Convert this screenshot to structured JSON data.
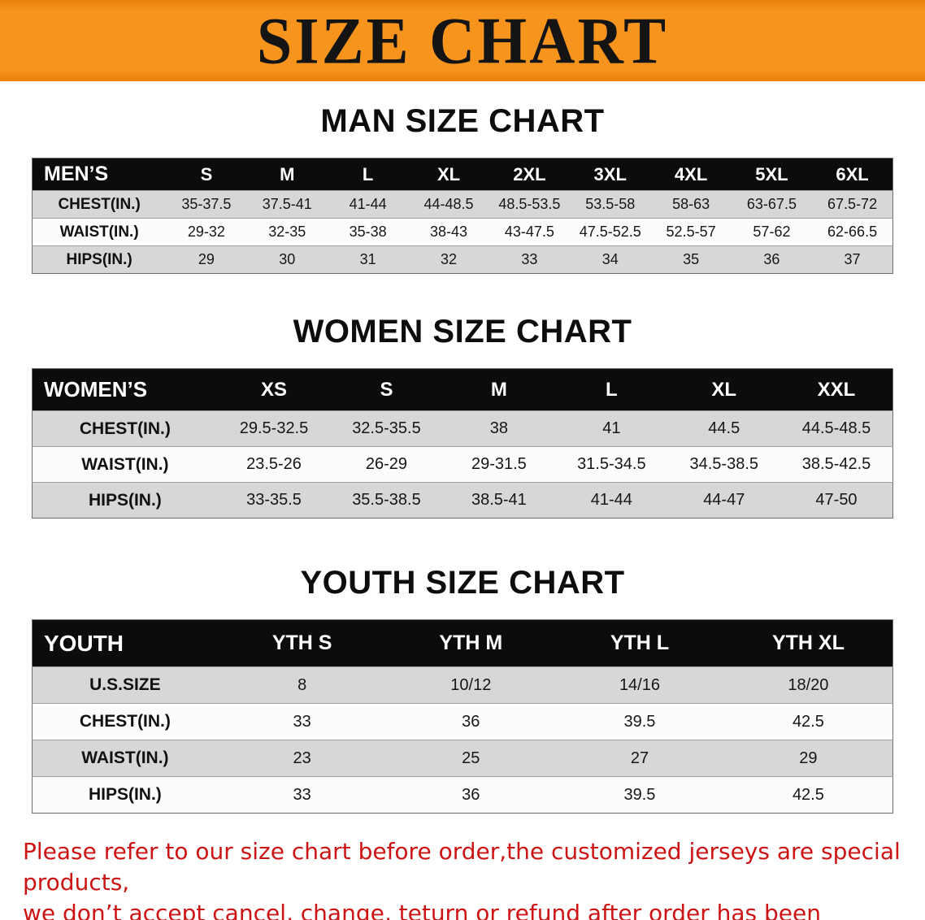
{
  "banner": {
    "title": "SIZE CHART",
    "bg_color": "#f7941e",
    "text_color": "#141414"
  },
  "chart_data": [
    {
      "type": "table",
      "title": "MAN SIZE CHART",
      "columns": [
        "MEN’S",
        "S",
        "M",
        "L",
        "XL",
        "2XL",
        "3XL",
        "4XL",
        "5XL",
        "6XL"
      ],
      "rows": [
        {
          "label": "CHEST(IN.)",
          "values": [
            "35-37.5",
            "37.5-41",
            "41-44",
            "44-48.5",
            "48.5-53.5",
            "53.5-58",
            "58-63",
            "63-67.5",
            "67.5-72"
          ]
        },
        {
          "label": "WAIST(IN.)",
          "values": [
            "29-32",
            "32-35",
            "35-38",
            "38-43",
            "43-47.5",
            "47.5-52.5",
            "52.5-57",
            "57-62",
            "62-66.5"
          ]
        },
        {
          "label": "HIPS(IN.)",
          "values": [
            "29",
            "30",
            "31",
            "32",
            "33",
            "34",
            "35",
            "36",
            "37"
          ]
        }
      ]
    },
    {
      "type": "table",
      "title": "WOMEN SIZE CHART",
      "columns": [
        "WOMEN’S",
        "XS",
        "S",
        "M",
        "L",
        "XL",
        "XXL"
      ],
      "rows": [
        {
          "label": "CHEST(IN.)",
          "values": [
            "29.5-32.5",
            "32.5-35.5",
            "38",
            "41",
            "44.5",
            "44.5-48.5"
          ]
        },
        {
          "label": "WAIST(IN.)",
          "values": [
            "23.5-26",
            "26-29",
            "29-31.5",
            "31.5-34.5",
            "34.5-38.5",
            "38.5-42.5"
          ]
        },
        {
          "label": "HIPS(IN.)",
          "values": [
            "33-35.5",
            "35.5-38.5",
            "38.5-41",
            "41-44",
            "44-47",
            "47-50"
          ]
        }
      ]
    },
    {
      "type": "table",
      "title": "YOUTH SIZE CHART",
      "columns": [
        "YOUTH",
        "YTH S",
        "YTH M",
        "YTH L",
        "YTH XL"
      ],
      "rows": [
        {
          "label": "U.S.SIZE",
          "values": [
            "8",
            "10/12",
            "14/16",
            "18/20"
          ]
        },
        {
          "label": "CHEST(IN.)",
          "values": [
            "33",
            "36",
            "39.5",
            "42.5"
          ]
        },
        {
          "label": "WAIST(IN.)",
          "values": [
            "23",
            "25",
            "27",
            "29"
          ]
        },
        {
          "label": "HIPS(IN.)",
          "values": [
            "33",
            "36",
            "39.5",
            "42.5"
          ]
        }
      ]
    }
  ],
  "footer": {
    "text_color": "#cd1414",
    "lines": [
      "Please refer to our size chart before order,the customized jerseys are special products,",
      "we don’t accept cancel, change, teturn or refund after order has been placed!"
    ]
  }
}
